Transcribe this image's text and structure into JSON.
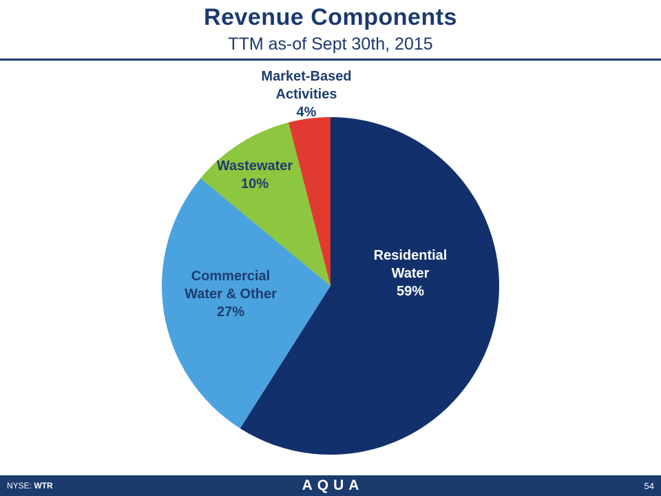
{
  "slide": {
    "title": "Revenue Components",
    "subtitle": "TTM as-of Sept 30th, 2015"
  },
  "footer": {
    "nyse_label": "NYSE:",
    "ticker": "WTR",
    "logo_text": "AQUA",
    "page_number": "54"
  },
  "chart_data": {
    "type": "pie",
    "title": "Revenue Components",
    "subtitle": "TTM as-of Sept 30th, 2015",
    "start_angle_deg": 0,
    "direction": "clockwise",
    "legend": "none",
    "slices": [
      {
        "label": "Residential Water",
        "value": 59,
        "color": "#12306b",
        "label_text": "Residential\nWater\n59%",
        "label_color": "#ffffff",
        "label_position": "inside"
      },
      {
        "label": "Commercial Water & Other",
        "value": 27,
        "color": "#4aa3df",
        "label_text": "Commercial\nWater & Other\n27%",
        "label_color": "#1d3d6f",
        "label_position": "inside"
      },
      {
        "label": "Wastewater",
        "value": 10,
        "color": "#8dc63f",
        "label_text": "Wastewater\n10%",
        "label_color": "#1d3d6f",
        "label_position": "outside"
      },
      {
        "label": "Market-Based Activities",
        "value": 4,
        "color": "#e13a31",
        "label_text": "Market-Based\nActivities\n4%",
        "label_color": "#1d3d6f",
        "label_position": "outside"
      }
    ]
  }
}
